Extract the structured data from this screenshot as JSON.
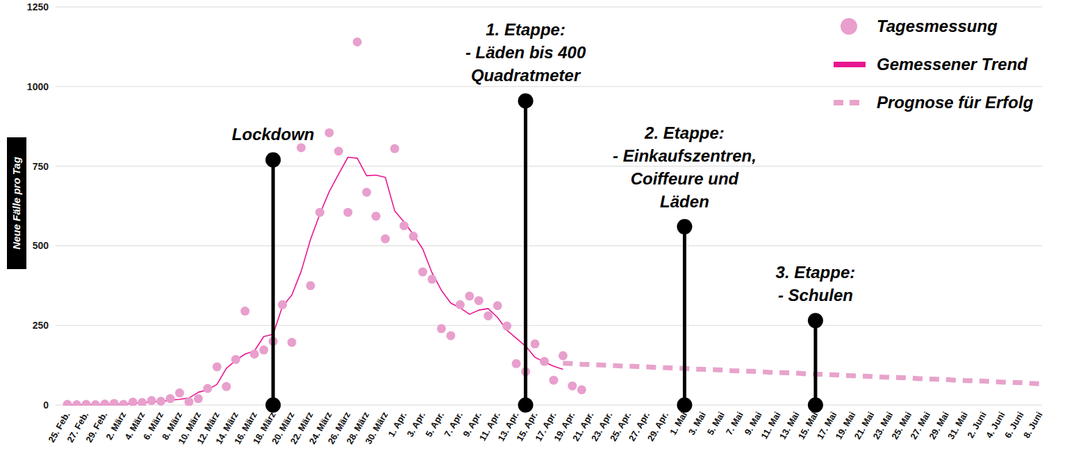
{
  "chart_data": {
    "type": "line",
    "y_label": "Neue Fälle pro Tag",
    "categories": [
      "25. Feb.",
      null,
      "27. Feb.",
      null,
      "29. Feb.",
      null,
      "2. März",
      null,
      "4. März",
      null,
      "6. März",
      null,
      "8. März",
      null,
      "10. März",
      null,
      "12. März",
      null,
      "14. März",
      null,
      "16. März",
      null,
      "18. März",
      null,
      "20. März",
      null,
      "22. März",
      null,
      "24. März",
      null,
      "26. März",
      null,
      "28. März",
      null,
      "30. März",
      null,
      "1. Apr.",
      null,
      "3. Apr.",
      null,
      "5. Apr.",
      null,
      "7. Apr.",
      null,
      "9. Apr.",
      null,
      "11. Apr.",
      null,
      "13. Apr.",
      null,
      "15. Apr.",
      null,
      "17. Apr.",
      null,
      "19. Apr.",
      null,
      "21. Apr.",
      null,
      "23. Apr.",
      null,
      "25. Apr.",
      null,
      "27. Apr.",
      null,
      "29. Apr.",
      null,
      "1. Mai",
      null,
      "3. Mai",
      null,
      "5. Mai",
      null,
      "7. Mai",
      null,
      "9. Mai",
      null,
      "11. Mai",
      null,
      "13. Mai",
      null,
      "15. Mai",
      null,
      "17. Mai",
      null,
      "19. Mai",
      null,
      "21. Mai",
      null,
      "23. Mai",
      null,
      "25. Mai",
      null,
      "27. Mai",
      null,
      "29. Mai",
      null,
      "31. Mai",
      null,
      "2. Juni",
      null,
      "4. Juni",
      null,
      "6. Juni",
      null,
      "8. Juni"
    ],
    "series": [
      {
        "name": "Tagesmessung",
        "type": "scatter",
        "marker": "circle",
        "color": "#e89fcd",
        "values": [
          2,
          1,
          2,
          1,
          3,
          5,
          2,
          9,
          8,
          14,
          12,
          20,
          38,
          10,
          20,
          52,
          120,
          58,
          143,
          295,
          160,
          173,
          200,
          315,
          197,
          808,
          375,
          605,
          855,
          797,
          605,
          1140,
          668,
          593,
          522,
          805,
          563,
          530,
          418,
          395,
          240,
          218,
          315,
          342,
          328,
          280,
          312,
          248,
          130,
          105,
          192,
          137,
          78,
          155,
          60,
          48,
          null,
          null,
          null,
          null,
          null,
          null,
          null,
          null,
          null,
          null,
          null,
          null,
          null,
          null,
          null,
          null,
          null,
          null,
          null,
          null,
          null,
          null,
          null,
          null,
          null,
          null,
          null,
          null,
          null,
          null,
          null,
          null,
          null,
          null,
          null,
          null,
          null,
          null,
          null,
          null,
          null,
          null,
          null,
          null,
          null,
          null,
          null,
          null,
          null
        ]
      },
      {
        "name": "Gemessener Trend",
        "type": "line",
        "line_style": "solid",
        "color": "#e8168f",
        "values": [
          0,
          0,
          1,
          1,
          2,
          2,
          3,
          5,
          7,
          9,
          12,
          15,
          18,
          22,
          40,
          48,
          65,
          115,
          140,
          160,
          170,
          215,
          222,
          310,
          345,
          420,
          520,
          600,
          670,
          725,
          778,
          775,
          720,
          722,
          715,
          610,
          575,
          535,
          490,
          415,
          360,
          320,
          305,
          285,
          298,
          303,
          275,
          235,
          210,
          185,
          150,
          135,
          122,
          112,
          null,
          null,
          null,
          null,
          null,
          null,
          null,
          null,
          null,
          null,
          null,
          null,
          null,
          null,
          null,
          null,
          null,
          null,
          null,
          null,
          null,
          null,
          null,
          null,
          null,
          null,
          null,
          null,
          null,
          null,
          null,
          null,
          null,
          null,
          null,
          null,
          null,
          null,
          null,
          null,
          null,
          null,
          null,
          null,
          null,
          null,
          null,
          null,
          null,
          null,
          null
        ]
      },
      {
        "name": "Prognose für Erfolg",
        "type": "line",
        "line_style": "dashed",
        "color": "#e8a3cb",
        "values": [
          null,
          null,
          null,
          null,
          null,
          null,
          null,
          null,
          null,
          null,
          null,
          null,
          null,
          null,
          null,
          null,
          null,
          null,
          null,
          null,
          null,
          null,
          null,
          null,
          null,
          null,
          null,
          null,
          null,
          null,
          null,
          null,
          null,
          null,
          null,
          null,
          null,
          null,
          null,
          null,
          null,
          null,
          null,
          null,
          null,
          null,
          null,
          null,
          null,
          null,
          null,
          null,
          null,
          131,
          130,
          128,
          127,
          126,
          125,
          123,
          122,
          121,
          120,
          118,
          117,
          116,
          115,
          113,
          112,
          111,
          110,
          108,
          107,
          106,
          105,
          103,
          102,
          101,
          100,
          98,
          97,
          96,
          95,
          93,
          92,
          91,
          90,
          88,
          87,
          86,
          85,
          83,
          82,
          81,
          80,
          78,
          77,
          76,
          75,
          73,
          72,
          71,
          70,
          68,
          67
        ]
      }
    ],
    "ylim": [
      0,
      1250
    ],
    "yticks": [
      0,
      250,
      500,
      750,
      1000,
      1250
    ],
    "grid": true,
    "legend": "top-right",
    "annotations": [
      {
        "text": [
          "Lockdown"
        ],
        "x": 22,
        "y": 770
      },
      {
        "text": [
          "1. Etappe:",
          "- Läden bis 400",
          "Quadratmeter"
        ],
        "x": 49,
        "y": 955
      },
      {
        "text": [
          "2. Etappe:",
          "- Einkaufszentren,",
          "Coiffeure und",
          "Läden"
        ],
        "x": 66,
        "y": 560
      },
      {
        "text": [
          "3. Etappe:",
          "- Schulen"
        ],
        "x": 80,
        "y": 265
      }
    ]
  }
}
